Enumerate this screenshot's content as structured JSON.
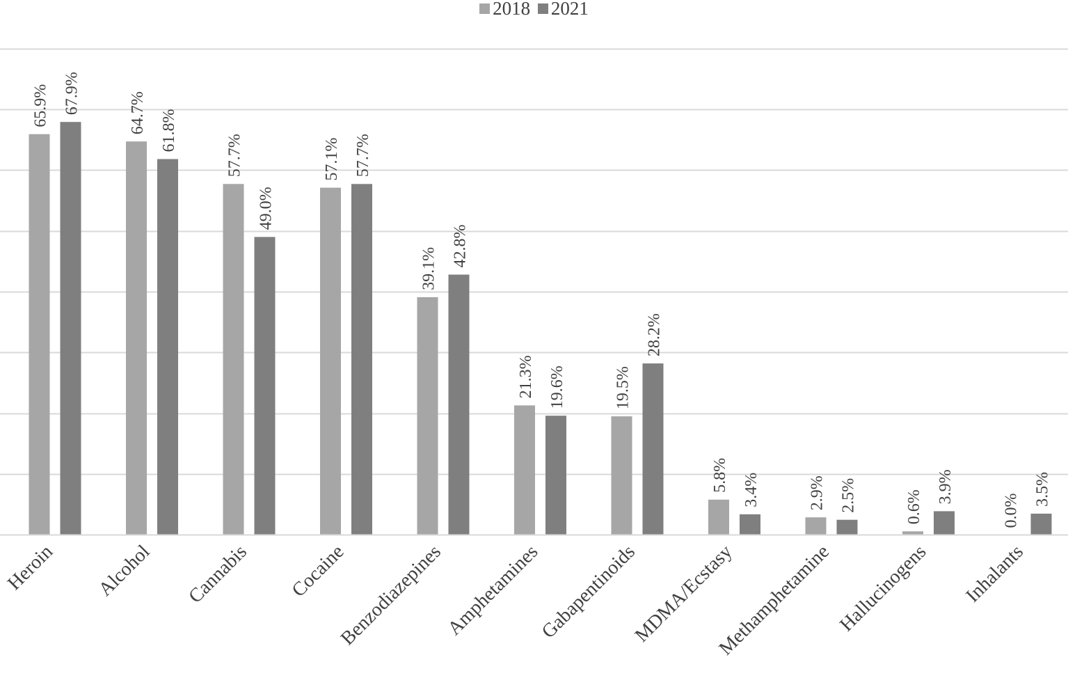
{
  "chart_data": {
    "type": "bar",
    "categories": [
      "Heroin",
      "Alcohol",
      "Cannabis",
      "Cocaine",
      "Benzodiazepines",
      "Amphetamines",
      "Gabapentinoids",
      "MDMA/Ecstasy",
      "Methamphetamine",
      "Hallucinogens",
      "Inhalants"
    ],
    "series": [
      {
        "name": "2018",
        "color": "#a6a6a6",
        "values": [
          65.9,
          64.7,
          57.7,
          57.1,
          39.1,
          21.3,
          19.5,
          5.8,
          2.9,
          0.6,
          0.0
        ],
        "labels": [
          "65.9%",
          "64.7%",
          "57.7%",
          "57.1%",
          "39.1%",
          "21.3%",
          "19.5%",
          "5.8%",
          "2.9%",
          "0.6%",
          "0.0%"
        ]
      },
      {
        "name": "2021",
        "color": "#7f7f7f",
        "values": [
          67.9,
          61.8,
          49.0,
          57.7,
          42.8,
          19.6,
          28.2,
          3.4,
          2.5,
          3.9,
          3.5
        ],
        "labels": [
          "67.9%",
          "61.8%",
          "49.0%",
          "57.7%",
          "42.8%",
          "19.6%",
          "28.2%",
          "3.4%",
          "2.5%",
          "3.9%",
          "3.5%"
        ]
      }
    ],
    "ylim": [
      0,
      80
    ],
    "gridlines": [
      0,
      10,
      20,
      30,
      40,
      50,
      60,
      70,
      80
    ],
    "grid": true,
    "legend_position": "top-center",
    "title": "",
    "xlabel": "",
    "ylabel": ""
  }
}
